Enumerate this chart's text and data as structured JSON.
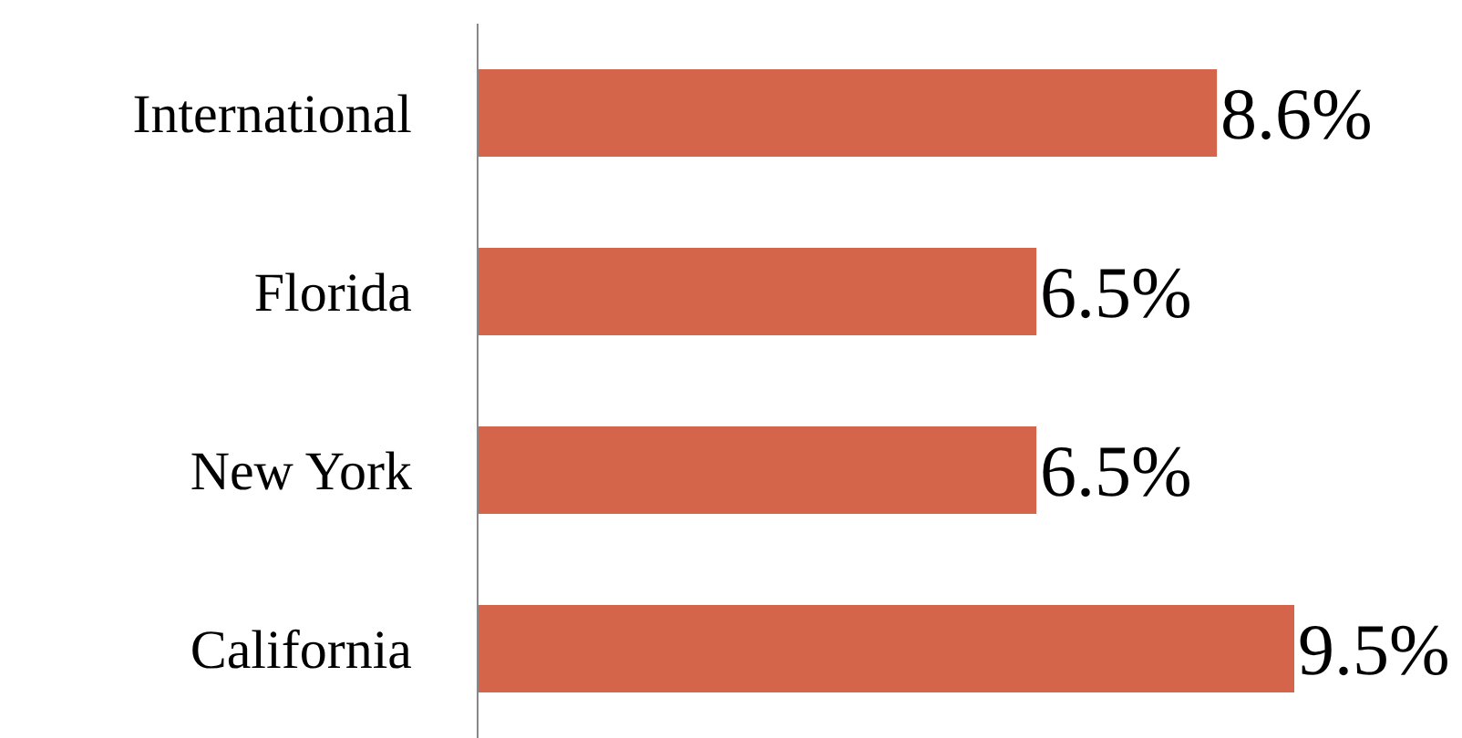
{
  "chart_data": {
    "type": "bar",
    "orientation": "horizontal",
    "categories": [
      "International",
      "Florida",
      "New York",
      "California"
    ],
    "values": [
      8.6,
      6.5,
      6.5,
      9.5
    ],
    "value_labels": [
      "8.6%",
      "6.5%",
      "6.5%",
      "9.5%"
    ],
    "color": "#d4654b",
    "grid": false,
    "legend": false
  }
}
